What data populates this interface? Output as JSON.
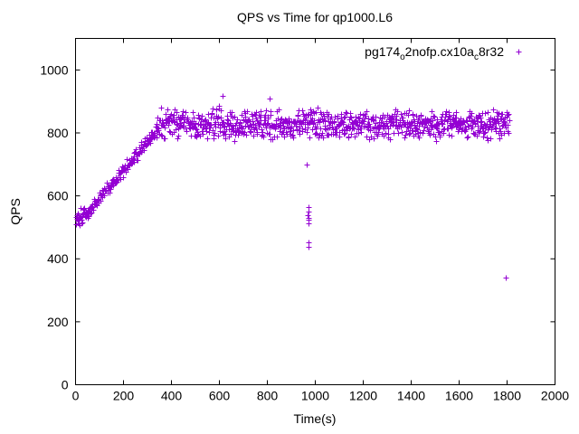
{
  "chart_data": {
    "type": "scatter",
    "title": "QPS vs Time for qp1000.L6",
    "xlabel": "Time(s)",
    "ylabel": "QPS",
    "xlim": [
      0,
      2000
    ],
    "ylim": [
      0,
      1100
    ],
    "x_ticks": [
      0,
      200,
      400,
      600,
      800,
      1000,
      1200,
      1400,
      1600,
      1800,
      2000
    ],
    "y_ticks": [
      0,
      200,
      400,
      600,
      800,
      1000
    ],
    "grid": false,
    "legend_position": "top-right-inside",
    "marker": {
      "shape": "plus",
      "color": "#9400D3",
      "size": 7
    },
    "axis_color": "#000000",
    "background_color": "#ffffff",
    "series": [
      {
        "name": "pg174_o2nofp.cx10a_c8r32",
        "label_parts": [
          {
            "text": "pg174",
            "sub": false
          },
          {
            "text": "o",
            "sub": true
          },
          {
            "text": "2nofp.cx10a",
            "sub": false
          },
          {
            "text": "c",
            "sub": true
          },
          {
            "text": "8r32",
            "sub": false
          }
        ],
        "seed": 1337,
        "description": "QPS warms up from ~535 at t=0-60s, ramps to ~805 by t=340s, then holds a noisy plateau ~780-890 (mean ~830) until t=1810s",
        "segments": [
          {
            "kind": "flat",
            "x_start": 1,
            "x_end": 58,
            "step": 1.3,
            "y_start": 530,
            "y_end": 548,
            "jitter": 32
          },
          {
            "kind": "ramp",
            "x_start": 58,
            "x_end": 340,
            "step": 2.0,
            "y_start": 556,
            "y_end": 806,
            "jitter": 26
          },
          {
            "kind": "plateau",
            "x_start": 340,
            "x_end": 1810,
            "step": 1.6,
            "y_start": 833,
            "y_end": 827,
            "jitter": 55
          }
        ],
        "outliers": [
          [
            612,
            918
          ],
          [
            808,
            910
          ],
          [
            965,
            700
          ],
          [
            970,
            563
          ],
          [
            972,
            549
          ],
          [
            969,
            538
          ],
          [
            971,
            530
          ],
          [
            973,
            524
          ],
          [
            970,
            512
          ],
          [
            971,
            451
          ],
          [
            972,
            437
          ],
          [
            1795,
            340
          ]
        ]
      }
    ]
  }
}
